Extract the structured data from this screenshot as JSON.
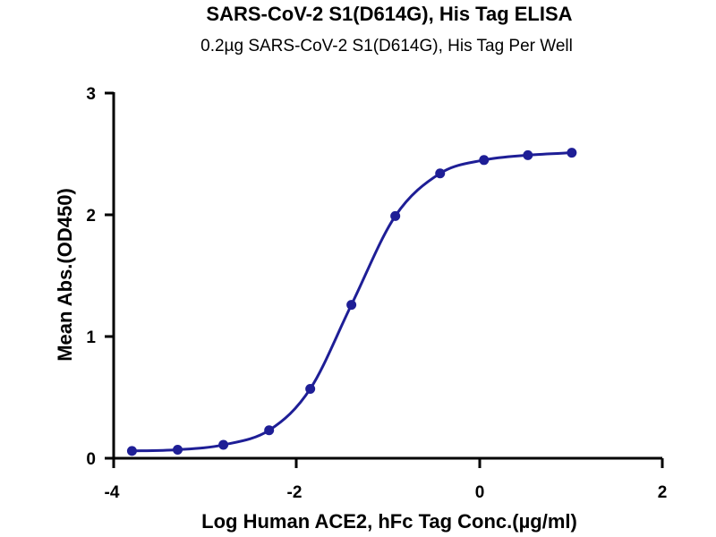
{
  "chart_data": {
    "type": "scatter",
    "title": "SARS-CoV-2 S1(D614G), His Tag ELISA",
    "subtitle": "0.2µg SARS-CoV-2 S1(D614G), His Tag Per Well",
    "xlabel": "Log Human ACE2, hFc Tag Conc.(µg/ml)",
    "ylabel": "Mean Abs.(OD450)",
    "xlim": [
      -4,
      2
    ],
    "ylim": [
      0,
      3
    ],
    "xticks": [
      "-4",
      "-2",
      "0",
      "2"
    ],
    "yticks": [
      "0",
      "1",
      "2",
      "3"
    ],
    "grid": false,
    "fit": "four-parameter logistic",
    "color": "#1e1e96",
    "x": [
      -3.8,
      -3.3,
      -2.8,
      -2.3,
      -1.85,
      -1.4,
      -0.92,
      -0.43,
      0.05,
      0.53,
      1.01
    ],
    "y": [
      0.06,
      0.07,
      0.11,
      0.23,
      0.57,
      1.26,
      1.99,
      2.34,
      2.45,
      2.49,
      2.51
    ]
  }
}
